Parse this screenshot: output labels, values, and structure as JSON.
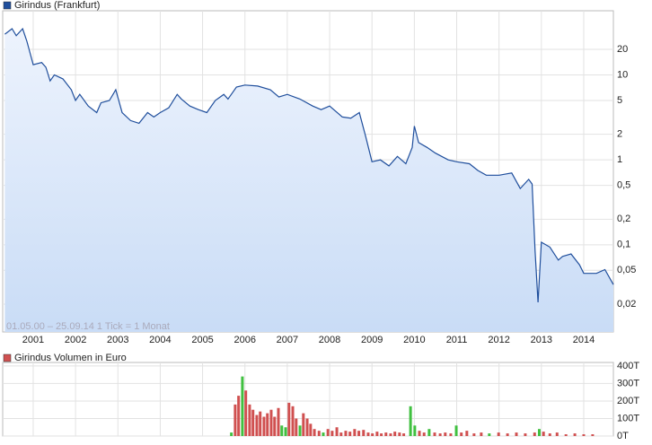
{
  "chart_data": [
    {
      "type": "area",
      "series": [
        {
          "name": "Girindus (Frankfurt)",
          "color": "#1f4e9c",
          "x": [
            2000.33,
            2000.5,
            2000.6,
            2000.75,
            2000.85,
            2001.0,
            2001.2,
            2001.3,
            2001.4,
            2001.5,
            2001.7,
            2001.9,
            2002.0,
            2002.1,
            2002.3,
            2002.5,
            2002.6,
            2002.8,
            2002.95,
            2003.1,
            2003.3,
            2003.5,
            2003.7,
            2003.85,
            2004.0,
            2004.2,
            2004.4,
            2004.5,
            2004.7,
            2004.9,
            2005.1,
            2005.3,
            2005.5,
            2005.6,
            2005.8,
            2006.0,
            2006.3,
            2006.6,
            2006.8,
            2007.0,
            2007.3,
            2007.6,
            2007.8,
            2008.0,
            2008.3,
            2008.5,
            2008.7,
            2008.85,
            2009.0,
            2009.2,
            2009.4,
            2009.6,
            2009.8,
            2009.95,
            2010.0,
            2010.1,
            2010.3,
            2010.5,
            2010.8,
            2011.0,
            2011.3,
            2011.5,
            2011.7,
            2012.0,
            2012.3,
            2012.5,
            2012.7,
            2012.78,
            2012.85,
            2012.92,
            2013.0,
            2013.2,
            2013.4,
            2013.5,
            2013.7,
            2013.9,
            2014.0,
            2014.3,
            2014.5,
            2014.7
          ],
          "values": [
            30.2,
            35,
            29,
            35,
            25,
            13.2,
            14,
            12.3,
            8.5,
            10,
            9,
            6.7,
            5,
            5.9,
            4.3,
            3.6,
            4.7,
            5,
            6.7,
            3.6,
            2.9,
            2.7,
            3.6,
            3.2,
            3.6,
            4.1,
            5.9,
            5.2,
            4.3,
            3.9,
            3.6,
            5,
            5.9,
            5.2,
            7.2,
            7.6,
            7.4,
            6.7,
            5.5,
            5.9,
            5.2,
            4.3,
            3.9,
            4.3,
            3.2,
            3.1,
            3.6,
            1.9,
            0.95,
            1.0,
            0.85,
            1.1,
            0.9,
            1.4,
            2.5,
            1.6,
            1.4,
            1.2,
            1.0,
            0.95,
            0.9,
            0.75,
            0.66,
            0.66,
            0.7,
            0.46,
            0.59,
            0.52,
            0.085,
            0.021,
            0.107,
            0.094,
            0.066,
            0.073,
            0.078,
            0.058,
            0.046,
            0.046,
            0.051,
            0.034
          ]
        }
      ],
      "annotation": "01.05.00 – 25.09.14   1 Tick = 1 Monat",
      "xlim": [
        2000.28,
        2014.7
      ],
      "xticks": [
        2001,
        2002,
        2003,
        2004,
        2005,
        2006,
        2007,
        2008,
        2009,
        2010,
        2011,
        2012,
        2013,
        2014
      ],
      "ylim": [
        0.0094,
        57
      ],
      "yticks": [
        {
          "value": 0.02,
          "label": "0,02"
        },
        {
          "value": 0.05,
          "label": "0,05"
        },
        {
          "value": 0.1,
          "label": "0,1"
        },
        {
          "value": 0.2,
          "label": "0,2"
        },
        {
          "value": 0.5,
          "label": "0,5"
        },
        1,
        2,
        5,
        10,
        20
      ],
      "log_scale": true,
      "grid": true
    },
    {
      "type": "bar",
      "series": [
        {
          "name": "Girindus Volumen in Euro",
          "color": "#d05050",
          "x": [
            2005.68,
            2005.77,
            2005.85,
            2005.94,
            2006.02,
            2006.11,
            2006.19,
            2006.28,
            2006.36,
            2006.45,
            2006.53,
            2006.62,
            2006.7,
            2006.79,
            2006.87,
            2006.96,
            2007.04,
            2007.13,
            2007.21,
            2007.3,
            2007.38,
            2007.47,
            2007.55,
            2007.64,
            2007.75,
            2007.85,
            2007.96,
            2008.06,
            2008.17,
            2008.27,
            2008.38,
            2008.48,
            2008.59,
            2008.69,
            2008.8,
            2008.91,
            2009.01,
            2009.12,
            2009.22,
            2009.33,
            2009.44,
            2009.54,
            2009.65,
            2009.75,
            2009.91,
            2010.01,
            2010.12,
            2010.23,
            2010.35,
            2010.48,
            2010.61,
            2010.73,
            2010.86,
            2010.99,
            2011.11,
            2011.24,
            2011.41,
            2011.58,
            2011.77,
            2011.99,
            2012.2,
            2012.41,
            2012.62,
            2012.84,
            2012.95,
            2013.05,
            2013.2,
            2013.37,
            2013.58,
            2013.79,
            2014.0,
            2014.21
          ],
          "values": [
            20,
            180,
            230,
            340,
            260,
            180,
            150,
            120,
            140,
            110,
            130,
            150,
            110,
            160,
            60,
            50,
            190,
            170,
            100,
            60,
            130,
            100,
            70,
            40,
            30,
            20,
            40,
            30,
            50,
            20,
            30,
            25,
            40,
            30,
            35,
            20,
            15,
            25,
            15,
            20,
            15,
            25,
            20,
            15,
            170,
            60,
            30,
            20,
            40,
            20,
            15,
            20,
            15,
            60,
            20,
            30,
            15,
            20,
            15,
            20,
            15,
            20,
            15,
            20,
            40,
            25,
            15,
            20,
            10,
            15,
            10,
            10
          ],
          "colors": [
            "#40c040",
            "#d05050",
            "#d05050",
            "#40c040",
            "#d05050",
            "#d05050",
            "#d05050",
            "#d05050",
            "#d05050",
            "#d05050",
            "#d05050",
            "#d05050",
            "#d05050",
            "#d05050",
            "#40c040",
            "#40c040",
            "#d05050",
            "#d05050",
            "#d05050",
            "#40c040",
            "#d05050",
            "#d05050",
            "#d05050",
            "#d05050",
            "#d05050",
            "#40c040",
            "#d05050",
            "#d05050",
            "#d05050",
            "#d05050",
            "#d05050",
            "#d05050",
            "#d05050",
            "#d05050",
            "#d05050",
            "#d05050",
            "#d05050",
            "#d05050",
            "#d05050",
            "#d05050",
            "#d05050",
            "#d05050",
            "#d05050",
            "#d05050",
            "#40c040",
            "#40c040",
            "#d05050",
            "#d05050",
            "#40c040",
            "#d05050",
            "#d05050",
            "#d05050",
            "#d05050",
            "#40c040",
            "#d05050",
            "#d05050",
            "#d05050",
            "#d05050",
            "#40c040",
            "#d05050",
            "#d05050",
            "#d05050",
            "#d05050",
            "#d05050",
            "#40c040",
            "#d05050",
            "#d05050",
            "#d05050",
            "#d05050",
            "#d05050",
            "#d05050",
            "#d05050"
          ]
        }
      ],
      "xlim": [
        2000.28,
        2014.7
      ],
      "ylim": [
        0,
        420
      ],
      "yticks": [
        {
          "value": 0,
          "label": "0T"
        },
        {
          "value": 100,
          "label": "100T"
        },
        {
          "value": 200,
          "label": "200T"
        },
        {
          "value": 300,
          "label": "300T"
        },
        {
          "value": 400,
          "label": "400T"
        }
      ],
      "grid": true
    }
  ]
}
